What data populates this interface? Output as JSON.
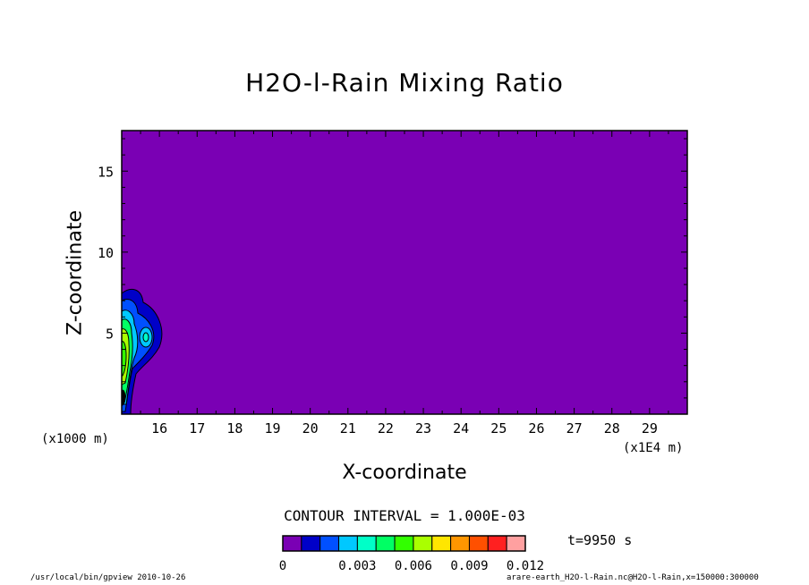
{
  "chart_data": {
    "type": "heatmap",
    "title": "H2O-l-Rain Mixing Ratio",
    "xlabel": "X-coordinate",
    "ylabel": "Z-coordinate",
    "x_unit": "(x1E4 m)",
    "y_unit": "(x1000 m)",
    "xlim": [
      15.0,
      30.0
    ],
    "ylim": [
      0.0,
      17.5
    ],
    "x_ticks": [
      "16",
      "17",
      "18",
      "19",
      "20",
      "21",
      "22",
      "23",
      "24",
      "25",
      "26",
      "27",
      "28",
      "29"
    ],
    "y_ticks": [
      "5",
      "10",
      "15"
    ],
    "contour_interval": "CONTOUR INTERVAL = 1.000E-03",
    "time_label": "t=9950 s",
    "colorbar": {
      "colors": [
        "#7a00b4",
        "#0000c8",
        "#0050ff",
        "#00c8ff",
        "#00ffc8",
        "#00ff64",
        "#32ff00",
        "#aaff00",
        "#ffe600",
        "#ff9600",
        "#ff5000",
        "#ff2020",
        "#ffa0a0"
      ],
      "labels": [
        "0",
        "0.003",
        "0.006",
        "0.009",
        "0.012"
      ]
    },
    "background_color": "#7a00b4"
  },
  "footer": {
    "left": "/usr/local/bin/gpview   2010-10-26",
    "right": "arare-earth_H2O-l-Rain.nc@H2O-l-Rain,x=150000:300000"
  }
}
